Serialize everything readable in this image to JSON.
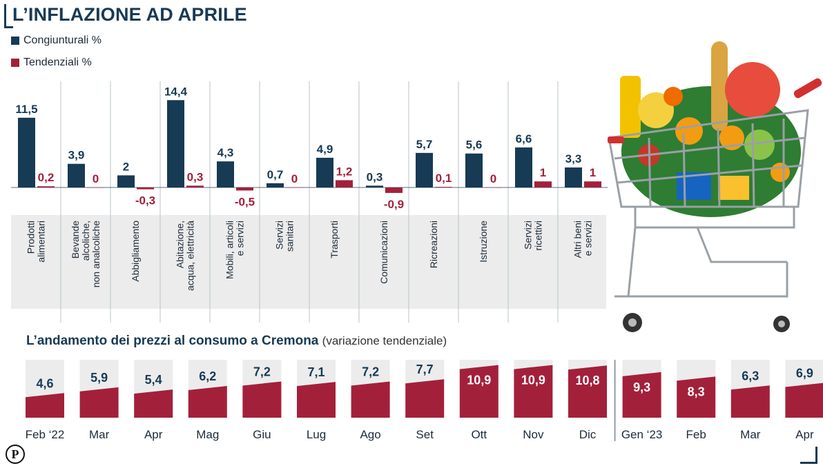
{
  "title": "L’INFLAZIONE AD APRILE",
  "legend": {
    "congiunturali": "Congiunturali %",
    "tendenziali": "Tendenziali %"
  },
  "colors": {
    "congiunturali": "#173a55",
    "tendenziali": "#a3203b",
    "panel": "#ececec"
  },
  "subtitle": {
    "bold": "L’andamento dei prezzi al consumo a Cremona",
    "note": "(variazione tendenziale)"
  },
  "chart_data": [
    {
      "type": "bar",
      "categories": [
        "Prodotti alimentari",
        "Bevande alcoliche, non analcoliche",
        "Abbigliamento",
        "Abitazione, acqua, elettricità",
        "Mobili, articoli e servizi",
        "Servizi sanitari",
        "Trasporti",
        "Comunicazioni",
        "Ricreazioni",
        "Istruzione",
        "Servizi ricettivi",
        "Altri beni e servizi"
      ],
      "category_lines": [
        [
          "Prodotti",
          "alimentari"
        ],
        [
          "Bevande",
          "alcoliche,",
          "non analcoliche"
        ],
        [
          "Abbigliamento"
        ],
        [
          "Abitazione,",
          "acqua, elettricità"
        ],
        [
          "Mobili, articoli",
          "e servizi"
        ],
        [
          "Servizi",
          "sanitari"
        ],
        [
          "Trasporti"
        ],
        [
          "Comunicazioni"
        ],
        [
          "Ricreazioni"
        ],
        [
          "Istruzione"
        ],
        [
          "Servizi",
          "ricettivi"
        ],
        [
          "Altri beni",
          "e servizi"
        ]
      ],
      "series": [
        {
          "name": "Congiunturali %",
          "values": [
            11.5,
            3.9,
            2,
            14.4,
            4.3,
            0.7,
            4.9,
            0.3,
            5.7,
            5.6,
            6.6,
            3.3
          ],
          "labels": [
            "11,5",
            "3,9",
            "2",
            "14,4",
            "4,3",
            "0,7",
            "4,9",
            "0,3",
            "5,7",
            "5,6",
            "6,6",
            "3,3"
          ]
        },
        {
          "name": "Tendenziali %",
          "values": [
            0.2,
            0,
            -0.3,
            0.3,
            -0.5,
            0,
            1.2,
            -0.9,
            0.1,
            0,
            1,
            1
          ],
          "labels": [
            "0,2",
            "0",
            "-0,3",
            "0,3",
            "-0,5",
            "0",
            "1,2",
            "-0,9",
            "0,1",
            "0",
            "1",
            "1"
          ]
        }
      ]
    },
    {
      "type": "bar",
      "categories": [
        "Feb ‘22",
        "Mar",
        "Apr",
        "Mag",
        "Giu",
        "Lug",
        "Ago",
        "Set",
        "Ott",
        "Nov",
        "Dic",
        "Gen ‘23",
        "Feb",
        "Mar",
        "Apr"
      ],
      "values": [
        4.6,
        5.9,
        5.4,
        6.2,
        7.2,
        7.1,
        7.2,
        7.7,
        10.9,
        10.9,
        10.8,
        9.3,
        8.3,
        6.3,
        6.9
      ],
      "labels": [
        "4,6",
        "5,9",
        "5,4",
        "6,2",
        "7,2",
        "7,1",
        "7,2",
        "7,7",
        "10,9",
        "10,9",
        "10,8",
        "9,3",
        "8,3",
        "6,3",
        "6,9"
      ]
    }
  ]
}
